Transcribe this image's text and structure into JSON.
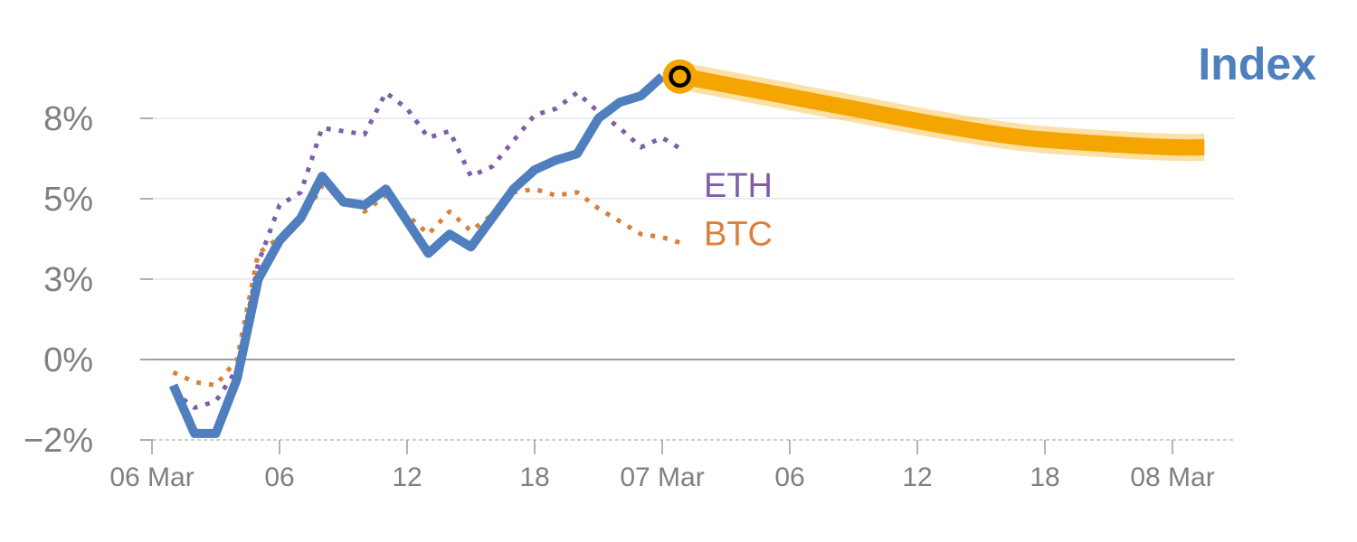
{
  "chart_data": {
    "type": "line",
    "title": "Index",
    "xlabel": "",
    "ylabel": "",
    "x_ticks": [
      {
        "hour": 0,
        "label": "06 Mar"
      },
      {
        "hour": 6,
        "label": "06"
      },
      {
        "hour": 12,
        "label": "12"
      },
      {
        "hour": 18,
        "label": "18"
      },
      {
        "hour": 24,
        "label": "07 Mar"
      },
      {
        "hour": 30,
        "label": "06"
      },
      {
        "hour": 36,
        "label": "12"
      },
      {
        "hour": 42,
        "label": "18"
      },
      {
        "hour": 48,
        "label": "08 Mar"
      }
    ],
    "y_ticks": [
      {
        "value": -2.5,
        "label": "−2%"
      },
      {
        "value": 0,
        "label": "0%"
      },
      {
        "value": 2.5,
        "label": "3%"
      },
      {
        "value": 5,
        "label": "5%"
      },
      {
        "value": 7.5,
        "label": "8%"
      }
    ],
    "xlim": [
      -0.4,
      51
    ],
    "ylim": [
      -2.5,
      10
    ],
    "grid": true,
    "series": [
      {
        "name": "ETH",
        "style": "dotted",
        "color": "#7e5ea8",
        "points": [
          [
            1,
            -1.0
          ],
          [
            2,
            -1.5
          ],
          [
            3,
            -1.3
          ],
          [
            4,
            -0.3
          ],
          [
            5,
            3.0
          ],
          [
            6,
            4.8
          ],
          [
            7,
            5.2
          ],
          [
            8,
            7.2
          ],
          [
            9,
            7.1
          ],
          [
            10,
            7.0
          ],
          [
            11,
            8.3
          ],
          [
            12,
            7.8
          ],
          [
            13,
            6.9
          ],
          [
            14,
            7.1
          ],
          [
            15,
            5.7
          ],
          [
            16,
            6.0
          ],
          [
            17,
            6.8
          ],
          [
            18,
            7.6
          ],
          [
            19,
            7.8
          ],
          [
            20,
            8.3
          ],
          [
            21,
            7.7
          ],
          [
            22,
            7.2
          ],
          [
            23,
            6.6
          ],
          [
            24,
            6.9
          ],
          [
            25,
            6.5
          ]
        ],
        "end_label": "ETH"
      },
      {
        "name": "BTC",
        "style": "dotted",
        "color": "#d9813a",
        "points": [
          [
            1,
            -0.4
          ],
          [
            2,
            -0.7
          ],
          [
            3,
            -0.8
          ],
          [
            4,
            0.0
          ],
          [
            5,
            3.3
          ],
          [
            6,
            3.8
          ],
          [
            7,
            4.3
          ],
          [
            8,
            5.4
          ],
          [
            9,
            5.0
          ],
          [
            10,
            4.6
          ],
          [
            11,
            5.1
          ],
          [
            12,
            4.5
          ],
          [
            13,
            3.9
          ],
          [
            14,
            4.6
          ],
          [
            15,
            4.0
          ],
          [
            16,
            4.5
          ],
          [
            17,
            5.2
          ],
          [
            18,
            5.3
          ],
          [
            19,
            5.1
          ],
          [
            20,
            5.2
          ],
          [
            21,
            4.7
          ],
          [
            22,
            4.3
          ],
          [
            23,
            3.9
          ],
          [
            24,
            3.8
          ],
          [
            25,
            3.6
          ]
        ],
        "end_label": "BTC"
      },
      {
        "name": "Index",
        "style": "solid",
        "color": "#4f7fbe",
        "points": [
          [
            1,
            -0.8
          ],
          [
            2,
            -2.3
          ],
          [
            3,
            -2.3
          ],
          [
            4,
            -0.6
          ],
          [
            5,
            2.5
          ],
          [
            6,
            3.7
          ],
          [
            7,
            4.4
          ],
          [
            8,
            5.7
          ],
          [
            9,
            4.9
          ],
          [
            10,
            4.8
          ],
          [
            11,
            5.3
          ],
          [
            12,
            4.3
          ],
          [
            13,
            3.3
          ],
          [
            14,
            3.9
          ],
          [
            15,
            3.5
          ],
          [
            16,
            4.4
          ],
          [
            17,
            5.3
          ],
          [
            18,
            5.9
          ],
          [
            19,
            6.2
          ],
          [
            20,
            6.4
          ],
          [
            21,
            7.5
          ],
          [
            22,
            8.0
          ],
          [
            23,
            8.2
          ],
          [
            24,
            8.8
          ]
        ],
        "end_label": "Index"
      },
      {
        "name": "Index forecast",
        "style": "forecast",
        "color": "#f5a500",
        "points": [
          [
            25,
            8.8
          ],
          [
            29,
            8.3
          ],
          [
            33,
            7.8
          ],
          [
            37,
            7.3
          ],
          [
            41,
            6.9
          ],
          [
            45,
            6.7
          ],
          [
            48,
            6.6
          ],
          [
            49.5,
            6.6
          ]
        ]
      }
    ],
    "marker": {
      "x": 25,
      "y": 8.8,
      "fill": "#f5a500",
      "ring": "#000000"
    }
  }
}
